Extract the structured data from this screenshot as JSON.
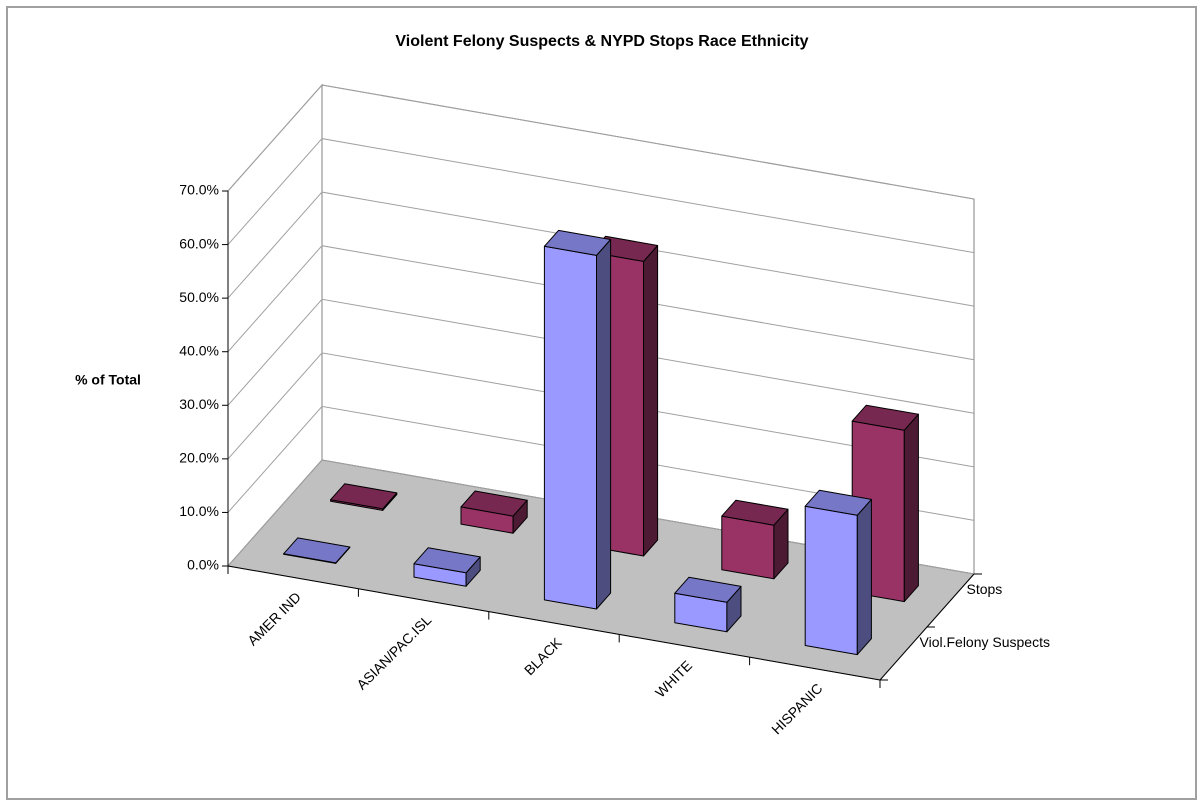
{
  "chart_data": {
    "type": "bar3d",
    "title": "Violent Felony Suspects & NYPD Stops Race Ethnicity",
    "y_label": "% of Total",
    "categories": [
      "AMER IND",
      "ASIAN/PAC.ISL",
      "BLACK",
      "WHITE",
      "HISPANIC"
    ],
    "series": [
      {
        "name": "Viol.Felony Suspects",
        "color": "#9999ff",
        "values": [
          0.1,
          2.5,
          66.0,
          5.5,
          26.0
        ]
      },
      {
        "name": "Stops",
        "color": "#993366",
        "values": [
          0.3,
          3.2,
          55.0,
          10.0,
          32.0
        ]
      }
    ],
    "ylim": [
      0,
      70
    ],
    "yticks": [
      {
        "value": 0,
        "label": "0.0%"
      },
      {
        "value": 10,
        "label": "10.0%"
      },
      {
        "value": 20,
        "label": "20.0%"
      },
      {
        "value": 30,
        "label": "30.0%"
      },
      {
        "value": 40,
        "label": "40.0%"
      },
      {
        "value": 50,
        "label": "50.0%"
      },
      {
        "value": 60,
        "label": "60.0%"
      },
      {
        "value": 70,
        "label": "70.0%"
      }
    ],
    "grid": true
  }
}
